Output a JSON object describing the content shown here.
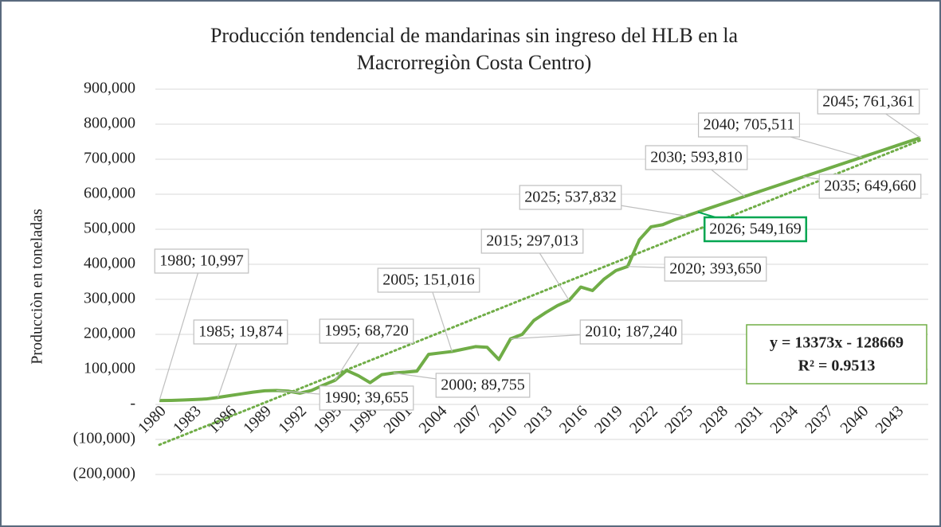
{
  "chart_data": {
    "type": "line",
    "title": [
      "Producción tendencial de mandarinas sin ingreso del HLB en la",
      "Macrorregiòn Costa Centro)"
    ],
    "y_label": "Producciòn en toneladas",
    "categories": [
      "1980",
      null,
      null,
      "1983",
      null,
      null,
      "1986",
      null,
      null,
      "1989",
      null,
      null,
      "1992",
      null,
      null,
      "1995",
      null,
      null,
      "1998",
      null,
      null,
      "2001",
      null,
      null,
      "2004",
      null,
      null,
      "2007",
      null,
      null,
      "2010",
      null,
      null,
      "2013",
      null,
      null,
      "2016",
      null,
      null,
      "2019",
      null,
      null,
      "2022",
      null,
      null,
      "2025",
      null,
      null,
      "2028",
      null,
      null,
      "2031",
      null,
      null,
      "2034",
      null,
      null,
      "2037",
      null,
      null,
      "2040",
      null,
      null,
      "2043",
      null,
      null
    ],
    "series": [
      {
        "name": "Producción",
        "color": "#70ad47",
        "values": [
          10997,
          11500,
          12500,
          14000,
          15500,
          19874,
          25000,
          30000,
          35000,
          39000,
          39655,
          38000,
          32000,
          40000,
          55000,
          68720,
          97000,
          82000,
          62000,
          85000,
          89755,
          92000,
          95000,
          143000,
          147000,
          151016,
          158000,
          165000,
          163000,
          128000,
          187240,
          200000,
          240000,
          262000,
          282000,
          297013,
          335000,
          325000,
          358000,
          382000,
          393650,
          470000,
          507000,
          513000,
          527000,
          537832,
          549169,
          560339,
          571509,
          582680,
          593810,
          604980,
          616150,
          627320,
          638490,
          649660,
          660830,
          672000,
          683170,
          694340,
          705511,
          716681,
          727851,
          739021,
          750191,
          761361
        ],
        "value_labels": [
          "1980; 10,997",
          null,
          null,
          null,
          null,
          "1985; 19,874",
          null,
          null,
          null,
          null,
          "1990; 39,655",
          null,
          null,
          null,
          null,
          "1995; 68,720",
          null,
          null,
          null,
          null,
          "2000; 89,755",
          null,
          null,
          null,
          null,
          "2005; 151,016",
          null,
          null,
          null,
          null,
          "2010; 187,240",
          null,
          null,
          null,
          null,
          "2015; 297,013",
          null,
          null,
          null,
          null,
          "2020; 393,650",
          null,
          null,
          null,
          null,
          "2025; 537,832",
          "2026; 549,169",
          null,
          null,
          null,
          "2030; 593,810",
          null,
          null,
          null,
          null,
          "2035; 649,660",
          null,
          null,
          null,
          null,
          "2040; 705,511",
          null,
          null,
          null,
          null,
          "2045; 761,361"
        ]
      }
    ],
    "trendline": {
      "color": "#70ad47",
      "values": [
        -115296,
        753949
      ],
      "equation": "y = 13373x - 128669",
      "r2": "R² = 0.9513"
    },
    "highlight_color": "#00a651",
    "ylim": [
      -200000,
      900000
    ],
    "yticks": [
      {
        "value": -200000,
        "label": "(200,000)"
      },
      {
        "value": -100000,
        "label": "(100,000)"
      },
      {
        "value": 0,
        "label": "-"
      },
      {
        "value": 100000,
        "label": "100,000"
      },
      {
        "value": 200000,
        "label": "200,000"
      },
      {
        "value": 300000,
        "label": "300,000"
      },
      {
        "value": 400000,
        "label": "400,000"
      },
      {
        "value": 500000,
        "label": "500,000"
      },
      {
        "value": 600000,
        "label": "600,000"
      },
      {
        "value": 700000,
        "label": "700,000"
      },
      {
        "value": 800000,
        "label": "800,000"
      },
      {
        "value": 900000,
        "label": "900,000"
      }
    ],
    "grid": true
  }
}
